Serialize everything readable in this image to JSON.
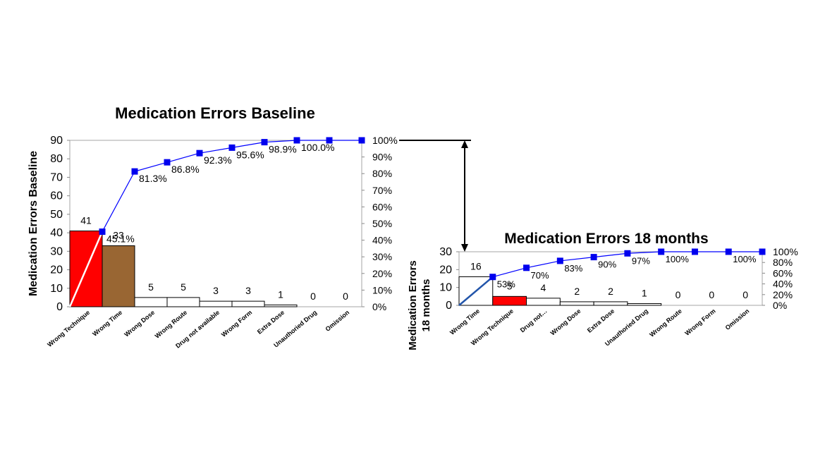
{
  "chart_data": [
    {
      "type": "bar",
      "title": "Medication Errors Baseline",
      "ylabel": "Medication Errors Baseline",
      "categories": [
        "Wrong Technique",
        "Wrong Time",
        "Wrong Dose",
        "Wrong Route",
        "Drug not available",
        "Wrong Form",
        "Extra Dose",
        "Unauthoried Drug",
        "Omission"
      ],
      "values": [
        41,
        33,
        5,
        5,
        3,
        3,
        1,
        0,
        0
      ],
      "value_labels": [
        "41",
        "33",
        "5",
        "5",
        "3",
        "3",
        "1",
        "0",
        "0"
      ],
      "bar_colors": [
        "#ff0000",
        "#996633",
        "#ffffff",
        "#ffffff",
        "#ffffff",
        "#ffffff",
        "#ffffff",
        "#ffffff",
        "#ffffff"
      ],
      "cumulative_percent": [
        45.1,
        81.3,
        86.8,
        92.3,
        95.6,
        98.9,
        100,
        100,
        100
      ],
      "cumulative_labels": [
        "45.1%",
        "81.3%",
        "86.8%",
        "92.3%",
        "95.6%",
        "98.9%",
        "100.0%",
        "",
        ""
      ],
      "ylim": [
        0,
        90
      ],
      "yticks": [
        "0",
        "10",
        "20",
        "30",
        "40",
        "50",
        "60",
        "70",
        "80",
        "90"
      ],
      "y2lim": [
        0,
        100
      ],
      "y2ticks": [
        "0%",
        "10%",
        "20%",
        "30%",
        "40%",
        "50%",
        "60%",
        "70%",
        "80%",
        "90%",
        "100%"
      ],
      "line_color": "#0000ff",
      "marker_color": "#0000ee"
    },
    {
      "type": "bar",
      "title": "Medication Errors 18 months",
      "ylabel": "Medication Errors 18 months",
      "categories": [
        "Wrong Time",
        "Wrong Technique",
        "Drug not…",
        "Wrong Dose",
        "Extra Dose",
        "Unauthoried Drug",
        "Wrong Route",
        "Wrong Form",
        "Omission"
      ],
      "values": [
        16,
        5,
        4,
        2,
        2,
        1,
        0,
        0,
        0
      ],
      "value_labels": [
        "16",
        "5",
        "4",
        "2",
        "2",
        "1",
        "0",
        "0",
        "0"
      ],
      "bar_colors": [
        "#ffffff",
        "#ff0000",
        "#ffffff",
        "#ffffff",
        "#ffffff",
        "#ffffff",
        "#ffffff",
        "#ffffff",
        "#ffffff"
      ],
      "cumulative_percent": [
        53,
        70,
        83,
        90,
        97,
        100,
        100,
        100,
        100
      ],
      "cumulative_labels": [
        "53%",
        "70%",
        "83%",
        "90%",
        "97%",
        "100%",
        "",
        "100%",
        ""
      ],
      "ylim": [
        0,
        30
      ],
      "yticks": [
        "0",
        "10",
        "20",
        "30"
      ],
      "y2lim": [
        0,
        100
      ],
      "y2ticks": [
        "0%",
        "20%",
        "40%",
        "60%",
        "80%",
        "100%"
      ],
      "line_color": "#0000ff",
      "marker_color": "#0000ee"
    }
  ]
}
